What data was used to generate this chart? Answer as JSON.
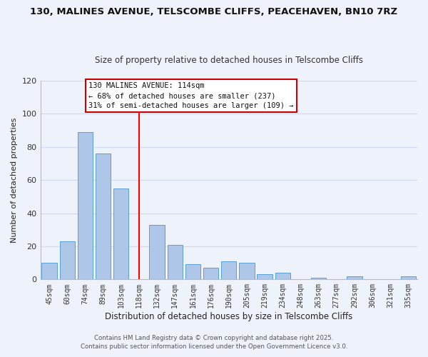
{
  "title1": "130, MALINES AVENUE, TELSCOMBE CLIFFS, PEACEHAVEN, BN10 7RZ",
  "title2": "Size of property relative to detached houses in Telscombe Cliffs",
  "xlabel": "Distribution of detached houses by size in Telscombe Cliffs",
  "ylabel": "Number of detached properties",
  "bar_labels": [
    "45sqm",
    "60sqm",
    "74sqm",
    "89sqm",
    "103sqm",
    "118sqm",
    "132sqm",
    "147sqm",
    "161sqm",
    "176sqm",
    "190sqm",
    "205sqm",
    "219sqm",
    "234sqm",
    "248sqm",
    "263sqm",
    "277sqm",
    "292sqm",
    "306sqm",
    "321sqm",
    "335sqm"
  ],
  "bar_values": [
    10,
    23,
    89,
    76,
    55,
    0,
    33,
    21,
    9,
    7,
    11,
    10,
    3,
    4,
    0,
    1,
    0,
    2,
    0,
    0,
    2
  ],
  "bar_color": "#aec6e8",
  "bar_edge_color": "#5a9fd4",
  "vline_x": 5,
  "vline_color": "red",
  "ylim": [
    0,
    120
  ],
  "yticks": [
    0,
    20,
    40,
    60,
    80,
    100,
    120
  ],
  "annotation_title": "130 MALINES AVENUE: 114sqm",
  "annotation_line1": "← 68% of detached houses are smaller (237)",
  "annotation_line2": "31% of semi-detached houses are larger (109) →",
  "annotation_box_color": "#ffffff",
  "annotation_box_edge": "#cc0000",
  "footer1": "Contains HM Land Registry data © Crown copyright and database right 2025.",
  "footer2": "Contains public sector information licensed under the Open Government Licence v3.0.",
  "bg_color": "#eef2fb",
  "grid_color": "#d0d8ef"
}
